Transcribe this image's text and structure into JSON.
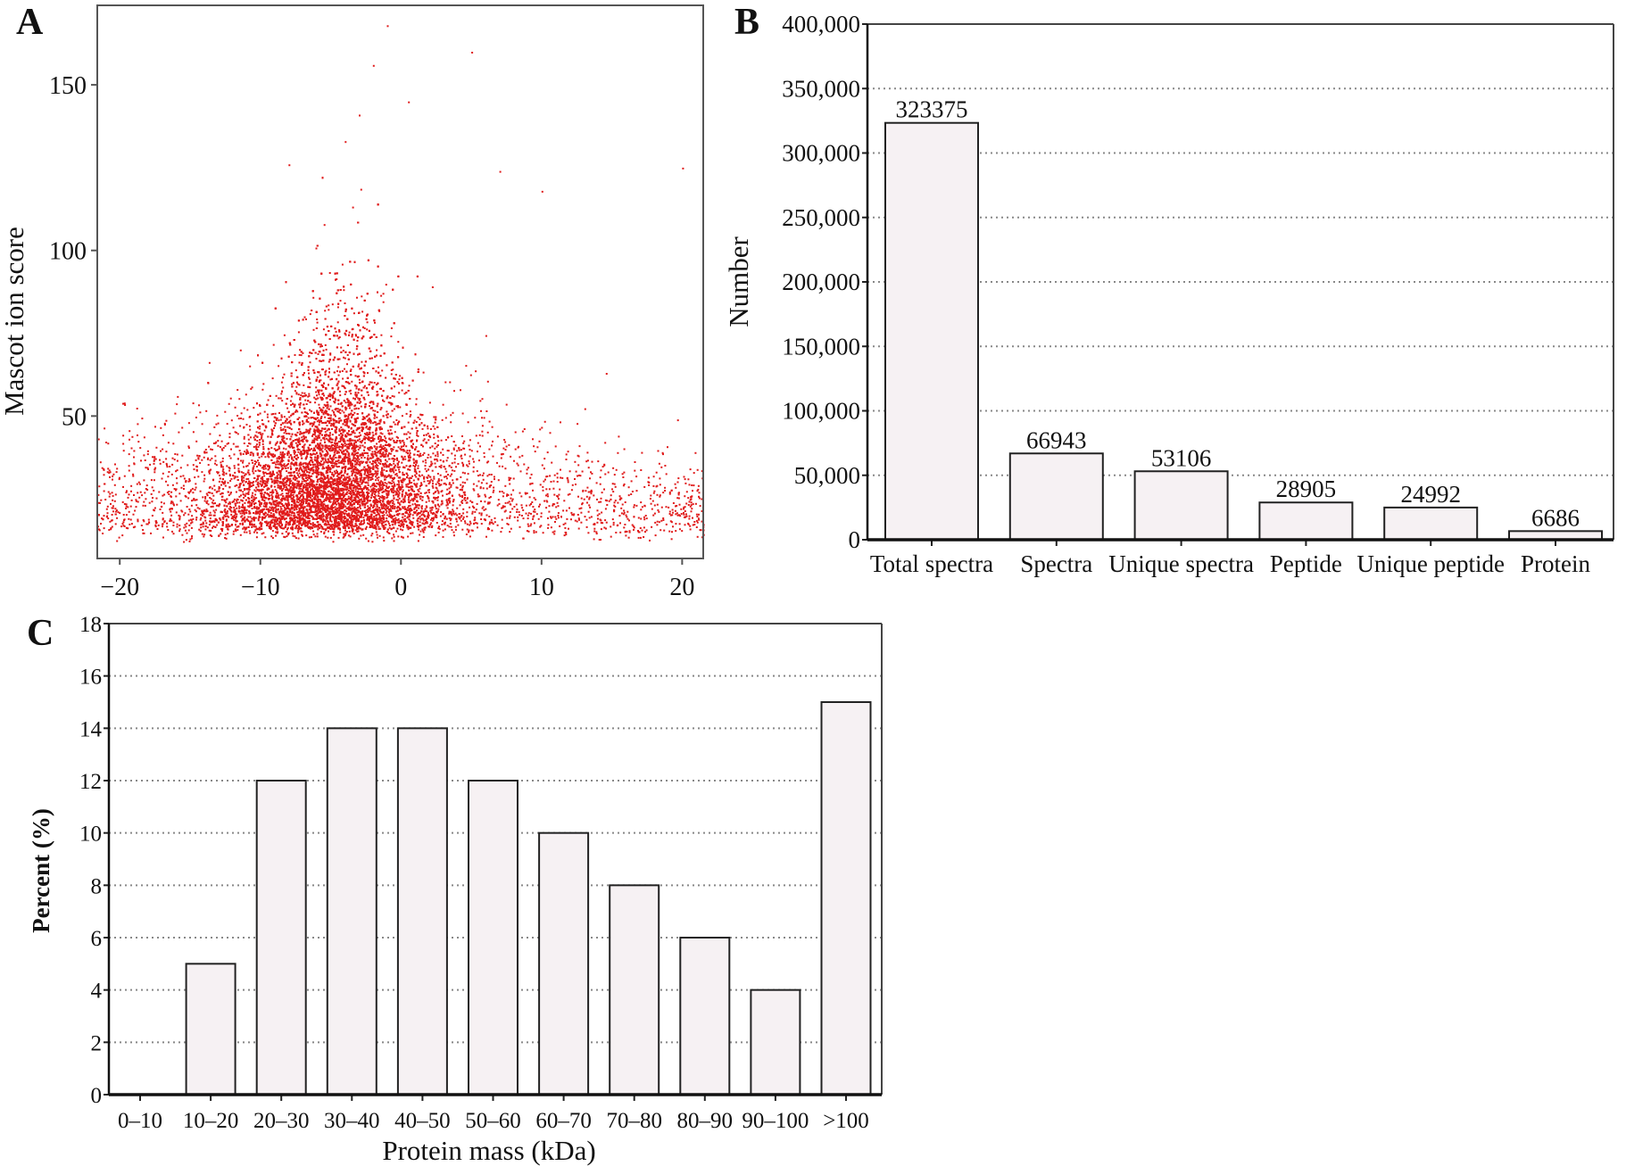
{
  "chart_data": [
    {
      "panel": "A",
      "type": "scatter",
      "ylabel": "Mascot ion score",
      "xlabel": "",
      "xlim": [
        -21.6,
        21.5
      ],
      "ylim": [
        7,
        174
      ],
      "xticks": [
        "−20",
        "−10",
        "0",
        "10",
        "20"
      ],
      "xtick_values": [
        -20,
        -10,
        0,
        10,
        20
      ],
      "yticks": [
        "50",
        "100",
        "150"
      ],
      "ytick_values": [
        50,
        100,
        150
      ],
      "grid": false,
      "point_color": "#e01b1b",
      "distribution": {
        "dense_center": [
          -5,
          35
        ],
        "x_spread_main": [
          -12,
          3
        ],
        "y_floor": 12
      },
      "outliers": [
        [
          -1,
          168
        ],
        [
          5,
          160
        ],
        [
          -2,
          156
        ],
        [
          0.5,
          145
        ],
        [
          -3,
          141
        ],
        [
          -4,
          133
        ],
        [
          7,
          124
        ],
        [
          20,
          125
        ],
        [
          -8,
          126
        ],
        [
          10,
          118
        ]
      ]
    },
    {
      "panel": "B",
      "type": "bar",
      "ylabel": "Number",
      "xlabel": "",
      "categories": [
        "Total spectra",
        "Spectra",
        "Unique spectra",
        "Peptide",
        "Unique peptide",
        "Protein"
      ],
      "values": [
        323375,
        66943,
        53106,
        28905,
        24992,
        6686
      ],
      "data_labels": [
        "323375",
        "66943",
        "53106",
        "28905",
        "24992",
        "6686"
      ],
      "ylim": [
        0,
        400000
      ],
      "yticks": [
        "0",
        "50,000",
        "100,000",
        "150,000",
        "200,000",
        "250,000",
        "300,000",
        "350,000",
        "400,000"
      ],
      "ytick_values": [
        0,
        50000,
        100000,
        150000,
        200000,
        250000,
        300000,
        350000,
        400000
      ],
      "grid": true,
      "bar_color": "#f6f1f3"
    },
    {
      "panel": "C",
      "type": "bar",
      "ylabel": "Percent (%)",
      "xlabel": "Protein mass (kDa)",
      "categories": [
        "0–10",
        "10–20",
        "20–30",
        "30–40",
        "40–50",
        "50–60",
        "60–70",
        "70–80",
        "80–90",
        "90–100",
        ">100"
      ],
      "values": [
        0,
        5,
        12,
        14,
        14,
        12,
        10,
        8,
        6,
        4,
        15
      ],
      "ylim": [
        0,
        18
      ],
      "yticks": [
        "0",
        "2",
        "4",
        "6",
        "8",
        "10",
        "12",
        "14",
        "16",
        "18"
      ],
      "ytick_values": [
        0,
        2,
        4,
        6,
        8,
        10,
        12,
        14,
        16,
        18
      ],
      "grid": true,
      "bar_color": "#f6f1f3"
    }
  ],
  "panels": {
    "a": "A",
    "b": "B",
    "c": "C"
  }
}
